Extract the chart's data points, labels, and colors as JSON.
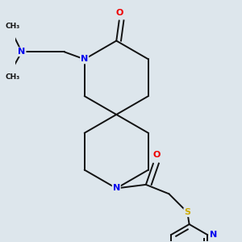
{
  "bg_color": "#dde6ec",
  "atom_colors": {
    "N": "#0000ee",
    "O": "#ee0000",
    "S": "#ccaa00",
    "C": "#111111"
  },
  "bond_color": "#111111",
  "bond_width": 1.4
}
